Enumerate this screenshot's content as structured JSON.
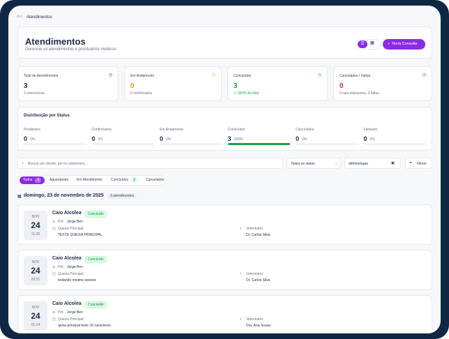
{
  "breadcrumb": "Atendimentos",
  "header": {
    "title": "Atendimentos",
    "subtitle": "Gerencie os atendimentos e prontuários médicos",
    "button": "Nova Consulta"
  },
  "stats": [
    {
      "label": "Total de Atendimentos",
      "value": 3,
      "note": "3 veterinários",
      "color": "#1e2a4a"
    },
    {
      "label": "Em Andamento",
      "value": 0,
      "note": "0 confirmados",
      "color": "#f59e0b"
    },
    {
      "label": "Concluídos",
      "value": 3,
      "note": "↗ 100% do total",
      "color": "#16a34a"
    },
    {
      "label": "Cancelados / Faltas",
      "value": 0,
      "note": "0 cancelamentos, 0 faltas",
      "color": "#dc2626"
    }
  ],
  "distribution": {
    "title": "Distribuição por Status",
    "bar_color": "#16a34a",
    "items": [
      {
        "label": "Pendentes",
        "count": 0,
        "percent": 0,
        "percent_label": "0%"
      },
      {
        "label": "Confirmados",
        "count": 0,
        "percent": 0,
        "percent_label": "0%"
      },
      {
        "label": "Em Andamento",
        "count": 0,
        "percent": 0,
        "percent_label": "0%"
      },
      {
        "label": "Concluídos",
        "count": 3,
        "percent": 100,
        "percent_label": "100%"
      },
      {
        "label": "Cancelados",
        "count": 0,
        "percent": 0,
        "percent_label": "0%"
      },
      {
        "label": "Faltaram",
        "count": 0,
        "percent": 0,
        "percent_label": "0%"
      }
    ]
  },
  "search": {
    "placeholder": "Buscar por cliente, pet ou veterinário...",
    "status": "Todos os status",
    "date": "dd/mm/aaaa",
    "filters": "Filtros"
  },
  "tabs": [
    {
      "label": "Todos",
      "count": 3
    },
    {
      "label": "Aguardando"
    },
    {
      "label": "Em Atendimento"
    },
    {
      "label": "Concluídos",
      "count": 3
    },
    {
      "label": "Cancelados"
    }
  ],
  "day": {
    "title": "domingo, 23 de novembro de 2025",
    "badge": "3 atendimentos"
  },
  "appointments": [
    {
      "month": "NOV",
      "day": 24,
      "time": "11:39",
      "client": "Caio Alcolea",
      "status": "Concluído",
      "pet_label": "Pet:",
      "pet": "Jorge Ben",
      "complaint_label": "Queixa Principal:",
      "complaint": "TESTE QUEIXA PRINCIPAL",
      "vet_label": "Veterinário:",
      "vet": "Dr. Carlos Silva"
    },
    {
      "month": "NOV",
      "day": 24,
      "time": "02:31",
      "client": "Caio Alcolea",
      "status": "Concluído",
      "pet_label": "Pet:",
      "pet": "Jorge Ben",
      "complaint_label": "Queixa Principal:",
      "complaint": "testando minimo eeeeee",
      "vet_label": "Veterinário:",
      "vet": "Dr. Carlos Silva"
    },
    {
      "month": "NOV",
      "day": 24,
      "time": "01:14",
      "client": "Caio Alcolea",
      "status": "Concluído",
      "pet_label": "Pet:",
      "pet": "Jorge Ben",
      "complaint_label": "Queixa Principal:",
      "complaint": "qeixa principal teste 10 caracteres",
      "vet_label": "Veterinário:",
      "vet": "Dra. Ana Souza"
    }
  ]
}
